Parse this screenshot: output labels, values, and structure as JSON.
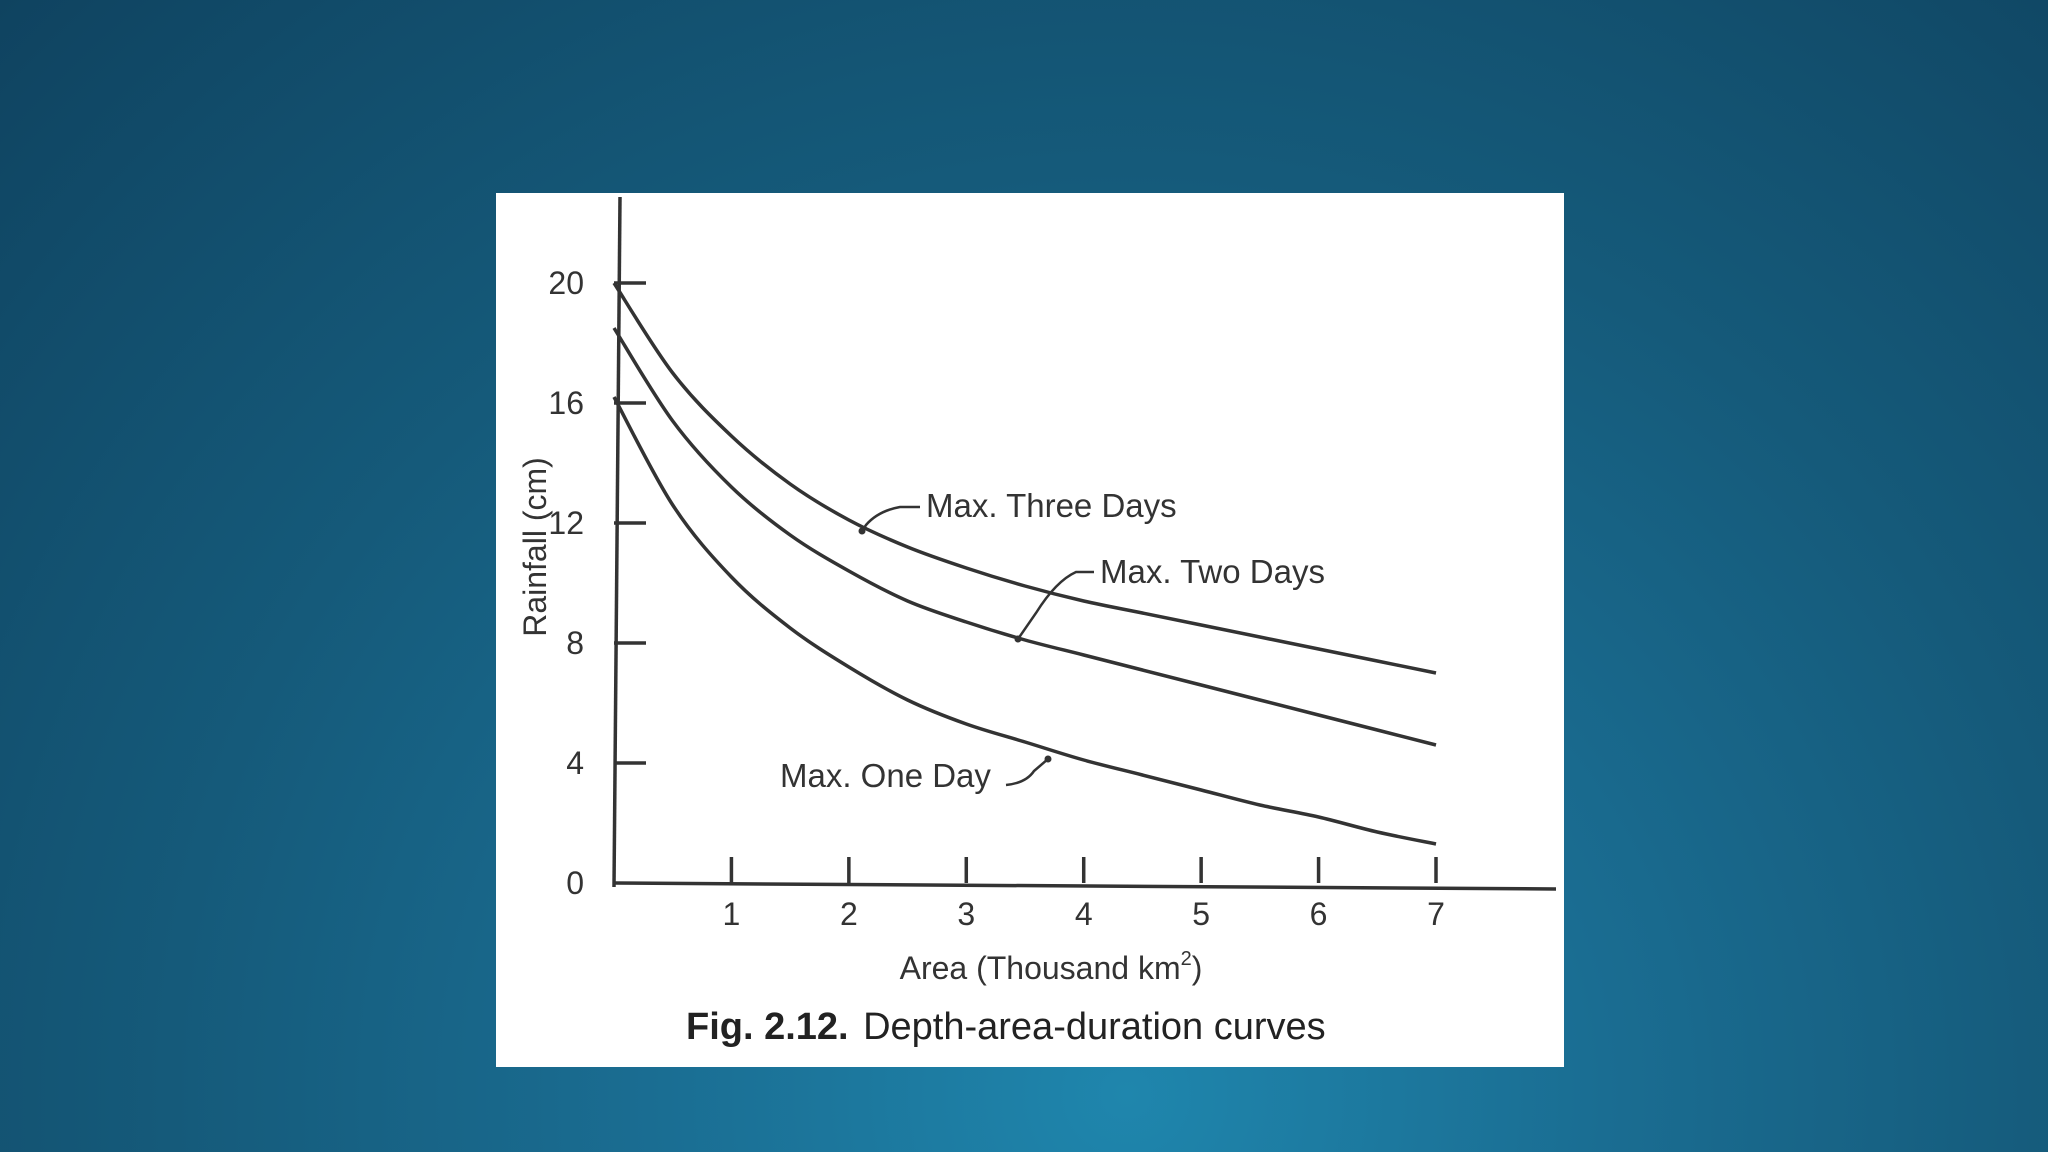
{
  "chart_data": {
    "type": "line",
    "ylabel": "Rainfall (cm)",
    "xlabel_main": "Area (Thousand km",
    "xlabel_sup": "2",
    "xlabel_close": ")",
    "caption_number": "Fig. 2.12.",
    "caption_text": "Depth-area-duration curves",
    "xlim": [
      0,
      7
    ],
    "ylim": [
      0,
      20
    ],
    "x_ticks": [
      1,
      2,
      3,
      4,
      5,
      6,
      7
    ],
    "y_ticks": [
      0,
      4,
      8,
      12,
      16,
      20
    ],
    "series": [
      {
        "name": "Max. Three Days",
        "x": [
          0,
          0.5,
          1,
          1.5,
          2,
          2.5,
          3,
          3.5,
          4,
          4.5,
          5,
          5.5,
          6,
          6.5,
          7
        ],
        "values": [
          20,
          17,
          14.9,
          13.3,
          12.1,
          11.2,
          10.5,
          9.9,
          9.4,
          9.0,
          8.6,
          8.2,
          7.8,
          7.4,
          7.0
        ]
      },
      {
        "name": "Max. Two Days",
        "x": [
          0,
          0.5,
          1,
          1.5,
          2,
          2.5,
          3,
          3.5,
          4,
          4.5,
          5,
          5.5,
          6,
          6.5,
          7
        ],
        "values": [
          18.5,
          15.4,
          13.2,
          11.6,
          10.4,
          9.4,
          8.7,
          8.1,
          7.6,
          7.1,
          6.6,
          6.1,
          5.6,
          5.1,
          4.6
        ]
      },
      {
        "name": "Max. One Day",
        "x": [
          0,
          0.5,
          1,
          1.5,
          2,
          2.5,
          3,
          3.5,
          4,
          4.5,
          5,
          5.5,
          6,
          6.5,
          7
        ],
        "values": [
          16.2,
          12.6,
          10.2,
          8.5,
          7.2,
          6.1,
          5.3,
          4.7,
          4.1,
          3.6,
          3.1,
          2.6,
          2.2,
          1.7,
          1.3
        ]
      }
    ],
    "grid": false,
    "legend": "inline-labels"
  }
}
